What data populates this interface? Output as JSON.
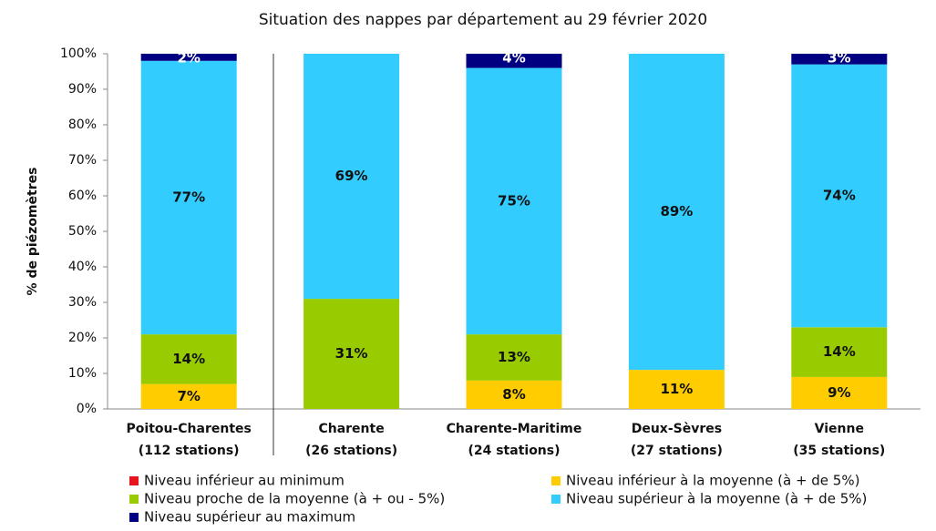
{
  "chart_data": {
    "type": "stacked_bar",
    "title": "Situation des nappes par département au 29 février 2020",
    "y_label": "% de piézomètres",
    "categories": [
      [
        "Poitou-Charentes",
        "(112 stations)"
      ],
      [
        "Charente",
        "(26 stations)"
      ],
      [
        "Charente-Maritime",
        "(24 stations)"
      ],
      [
        "Deux-Sèvres",
        "(27 stations)"
      ],
      [
        "Vienne",
        "(35 stations)"
      ]
    ],
    "series": [
      {
        "name": "Niveau inférieur au minimum",
        "color": "#e8141c",
        "values": [
          0,
          0,
          0,
          0,
          0
        ],
        "value_labels": [
          null,
          null,
          null,
          null,
          null
        ]
      },
      {
        "name": "Niveau inférieur à la moyenne (à + de 5%)",
        "color": "#ffcc00",
        "values": [
          7,
          0,
          8,
          11,
          9
        ],
        "value_labels": [
          "7%",
          null,
          "8%",
          "11%",
          "9%"
        ]
      },
      {
        "name": "Niveau proche de la moyenne (à + ou - 5%)",
        "color": "#99cc00",
        "values": [
          14,
          31,
          13,
          0,
          14
        ],
        "value_labels": [
          "14%",
          "31%",
          "13%",
          null,
          "14%"
        ]
      },
      {
        "name": "Niveau supérieur à la moyenne (à + de  5%)",
        "color": "#33ccff",
        "values": [
          77,
          69,
          75,
          89,
          74
        ],
        "value_labels": [
          "77%",
          "69%",
          "75%",
          "89%",
          "74%"
        ]
      },
      {
        "name": "Niveau supérieur au maximum",
        "color": "#000080",
        "values": [
          2,
          0,
          4,
          0,
          3
        ],
        "value_labels": [
          "2%",
          null,
          "4%",
          null,
          "3%"
        ]
      }
    ],
    "ylim": [
      0,
      100
    ],
    "yticks": [
      {
        "value": 0,
        "label": "0%"
      },
      {
        "value": 10,
        "label": "10%"
      },
      {
        "value": 20,
        "label": "20%"
      },
      {
        "value": 30,
        "label": "30%"
      },
      {
        "value": 40,
        "label": "40%"
      },
      {
        "value": 50,
        "label": "50%"
      },
      {
        "value": 60,
        "label": "60%"
      },
      {
        "value": 70,
        "label": "70%"
      },
      {
        "value": 80,
        "label": "80%"
      },
      {
        "value": 90,
        "label": "90%"
      },
      {
        "value": 100,
        "label": "100%"
      }
    ]
  }
}
